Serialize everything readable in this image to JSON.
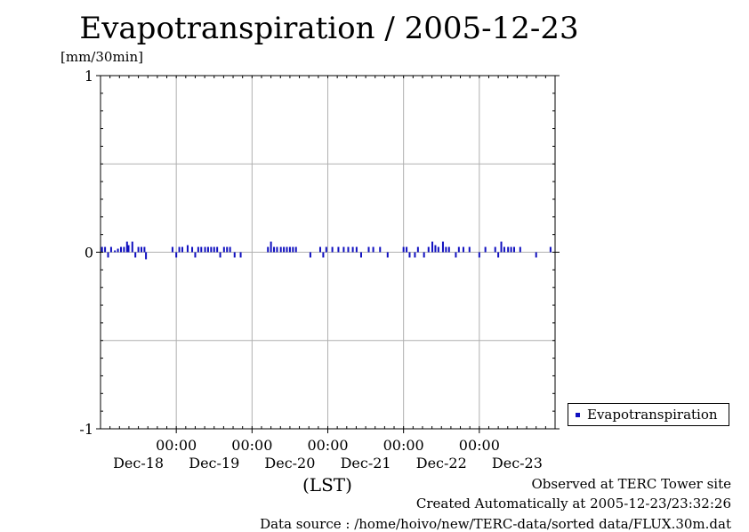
{
  "chart_data": {
    "type": "bar",
    "title": "Evapotranspiration / 2005-12-23",
    "ylabel": "[mm/30min]",
    "xlabel": "(LST)",
    "ylim": [
      -1,
      1
    ],
    "yticks": [
      {
        "value": 1,
        "label": "1"
      },
      {
        "value": 0,
        "label": "0"
      },
      {
        "value": -1,
        "label": "-1"
      }
    ],
    "xlim": [
      -1.0,
      5.0
    ],
    "xticks": [
      {
        "value": 0,
        "time": "00:00",
        "date": "Dec-19"
      },
      {
        "value": 1,
        "time": "00:00",
        "date": "Dec-20"
      },
      {
        "value": 2,
        "time": "00:00",
        "date": "Dec-21"
      },
      {
        "value": 3,
        "time": "00:00",
        "date": "Dec-22"
      },
      {
        "value": 4,
        "time": "00:00",
        "date": "Dec-23"
      }
    ],
    "first_date_label": "Dec-18",
    "grid": true,
    "legend": {
      "position": "right",
      "entries": [
        "Evapotranspiration"
      ]
    },
    "series": [
      {
        "name": "Evapotranspiration",
        "color": "#1010c0",
        "x": [
          -0.98,
          -0.94,
          -0.9,
          -0.86,
          -0.81,
          -0.77,
          -0.73,
          -0.69,
          -0.65,
          -0.63,
          -0.58,
          -0.54,
          -0.5,
          -0.46,
          -0.42,
          -0.4,
          -0.05,
          0.0,
          0.04,
          0.08,
          0.15,
          0.21,
          0.25,
          0.29,
          0.33,
          0.38,
          0.42,
          0.46,
          0.5,
          0.54,
          0.58,
          0.63,
          0.67,
          0.71,
          0.77,
          0.85,
          1.21,
          1.25,
          1.29,
          1.33,
          1.38,
          1.42,
          1.46,
          1.5,
          1.54,
          1.58,
          1.77,
          1.9,
          1.94,
          1.98,
          2.06,
          2.14,
          2.21,
          2.27,
          2.33,
          2.38,
          2.44,
          2.54,
          2.6,
          2.69,
          2.79,
          3.0,
          3.04,
          3.08,
          3.15,
          3.19,
          3.27,
          3.33,
          3.38,
          3.42,
          3.46,
          3.52,
          3.56,
          3.6,
          3.69,
          3.73,
          3.79,
          3.87,
          4.0,
          4.08,
          4.21,
          4.25,
          4.29,
          4.33,
          4.38,
          4.42,
          4.46,
          4.54,
          4.75,
          4.94
        ],
        "values": [
          0.03,
          0.03,
          -0.03,
          0.03,
          0.01,
          0.02,
          0.03,
          0.03,
          0.06,
          0.04,
          0.06,
          -0.03,
          0.03,
          0.03,
          0.03,
          -0.04,
          0.03,
          -0.03,
          0.03,
          0.03,
          0.04,
          0.03,
          -0.03,
          0.03,
          0.03,
          0.03,
          0.03,
          0.03,
          0.03,
          0.03,
          -0.03,
          0.03,
          0.03,
          0.03,
          -0.03,
          -0.03,
          0.03,
          0.06,
          0.03,
          0.03,
          0.03,
          0.03,
          0.03,
          0.03,
          0.03,
          0.03,
          -0.03,
          0.03,
          -0.03,
          0.03,
          0.03,
          0.03,
          0.03,
          0.03,
          0.03,
          0.03,
          -0.03,
          0.03,
          0.03,
          0.03,
          -0.03,
          0.03,
          0.03,
          -0.03,
          -0.03,
          0.03,
          -0.03,
          0.03,
          0.06,
          0.04,
          0.03,
          0.06,
          0.03,
          0.03,
          -0.03,
          0.03,
          0.03,
          0.03,
          -0.03,
          0.03,
          0.03,
          -0.03,
          0.06,
          0.03,
          0.03,
          0.03,
          0.03,
          0.03,
          -0.03,
          0.03
        ]
      }
    ]
  },
  "footer": {
    "observed": "Observed at TERC Tower site",
    "created": "Created Automatically at 2005-12-23/23:32:26",
    "source": "Data source : /home/hoivo/new/TERC-data/sorted  data/FLUX.30m.dat"
  }
}
